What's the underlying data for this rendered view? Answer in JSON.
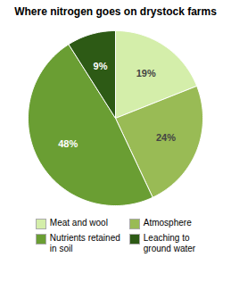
{
  "chart_data": {
    "type": "pie",
    "title": "Where nitrogen goes on drystock farms",
    "categories": [
      "Meat and wool",
      "Atmosphere",
      "Nutrients retained\nin soil",
      "Leaching to\nground water"
    ],
    "values": [
      19,
      24,
      48,
      9
    ],
    "value_labels": [
      "19%",
      "24%",
      "48%",
      "9%"
    ],
    "colors": [
      "#d4eeaa",
      "#99bb55",
      "#6a9e33",
      "#2d5a15"
    ],
    "data_labels": true,
    "legend": "bottom"
  }
}
